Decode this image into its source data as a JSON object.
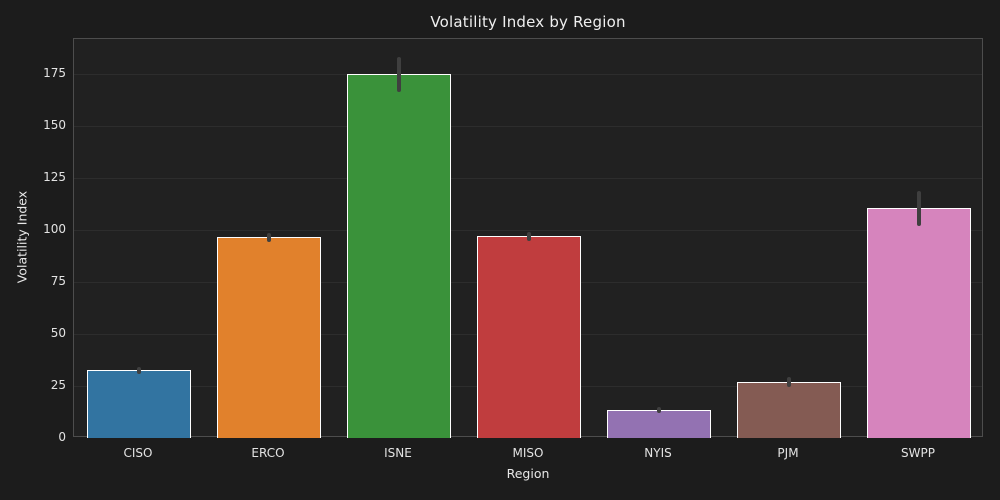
{
  "chart_data": {
    "type": "bar",
    "title": "Volatility Index by Region",
    "xlabel": "Region",
    "ylabel": "Volatility Index",
    "categories": [
      "CISO",
      "ERCO",
      "ISNE",
      "MISO",
      "NYIS",
      "PJM",
      "SWPP"
    ],
    "values": [
      32.5,
      96.5,
      175,
      97,
      13.5,
      27,
      110.5
    ],
    "errors": [
      1.5,
      2,
      8.5,
      2,
      1.5,
      2.5,
      8.5
    ],
    "yticks": [
      0,
      25,
      50,
      75,
      100,
      125,
      150,
      175
    ],
    "ylim": [
      0,
      192
    ],
    "grid": "horizontal",
    "legend": "none",
    "bar_colors": [
      "#3274a1",
      "#e1812c",
      "#3a923a",
      "#c03d3e",
      "#9372b2",
      "#845b53",
      "#d684bd"
    ],
    "bar_edge_color": "#ffffff",
    "error_bar_color": "#3f3f3f",
    "figure_background": "#1c1c1c",
    "axes_background": "#212121",
    "grid_color": "#2d2d2d",
    "spine_color": "#4d4d4d",
    "text_color": "#e8e8e8"
  }
}
